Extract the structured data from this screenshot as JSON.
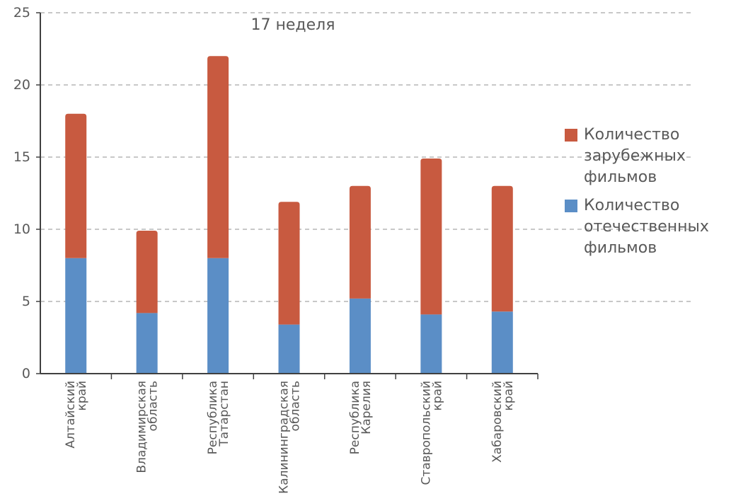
{
  "chart_data": {
    "type": "bar",
    "stacked": true,
    "title": "17 неделя",
    "categories": [
      "Алтайский край",
      "Владимирская область",
      "Республика Татарстан",
      "Калининградская область",
      "Республика Карелия",
      "Ставропольский край",
      "Хабаровский край"
    ],
    "category_label_lines": [
      [
        "Алтайский",
        "край"
      ],
      [
        "Владимирская",
        "область"
      ],
      [
        "Республика",
        "Татарстан"
      ],
      [
        "Калининградская",
        "область"
      ],
      [
        "Республика",
        "Карелия"
      ],
      [
        "Ставропольский",
        "край"
      ],
      [
        "Хабаровский",
        "край"
      ]
    ],
    "series": [
      {
        "name": "Количество отечественных фильмов",
        "color": "#5B8EC6",
        "values": [
          8,
          4.2,
          8,
          3.4,
          5.2,
          4.1,
          4.3
        ]
      },
      {
        "name": "Количество зарубежных фильмов",
        "color": "#C85A40",
        "values": [
          10,
          5.7,
          14,
          8.5,
          7.8,
          10.8,
          8.7
        ]
      }
    ],
    "ylim": [
      0,
      25
    ],
    "y_ticks": [
      0,
      5,
      10,
      15,
      20,
      25
    ],
    "grid": true,
    "legend_position": "right",
    "xlabel": "",
    "ylabel": ""
  },
  "legend": {
    "items": [
      {
        "label": "Количество зарубежных фильмов",
        "color": "#C85A40"
      },
      {
        "label": "Количество отечественных фильмов",
        "color": "#5B8EC6"
      }
    ]
  },
  "colors": {
    "axis": "#404040",
    "grid": "#A6A6A6",
    "text": "#595959"
  }
}
